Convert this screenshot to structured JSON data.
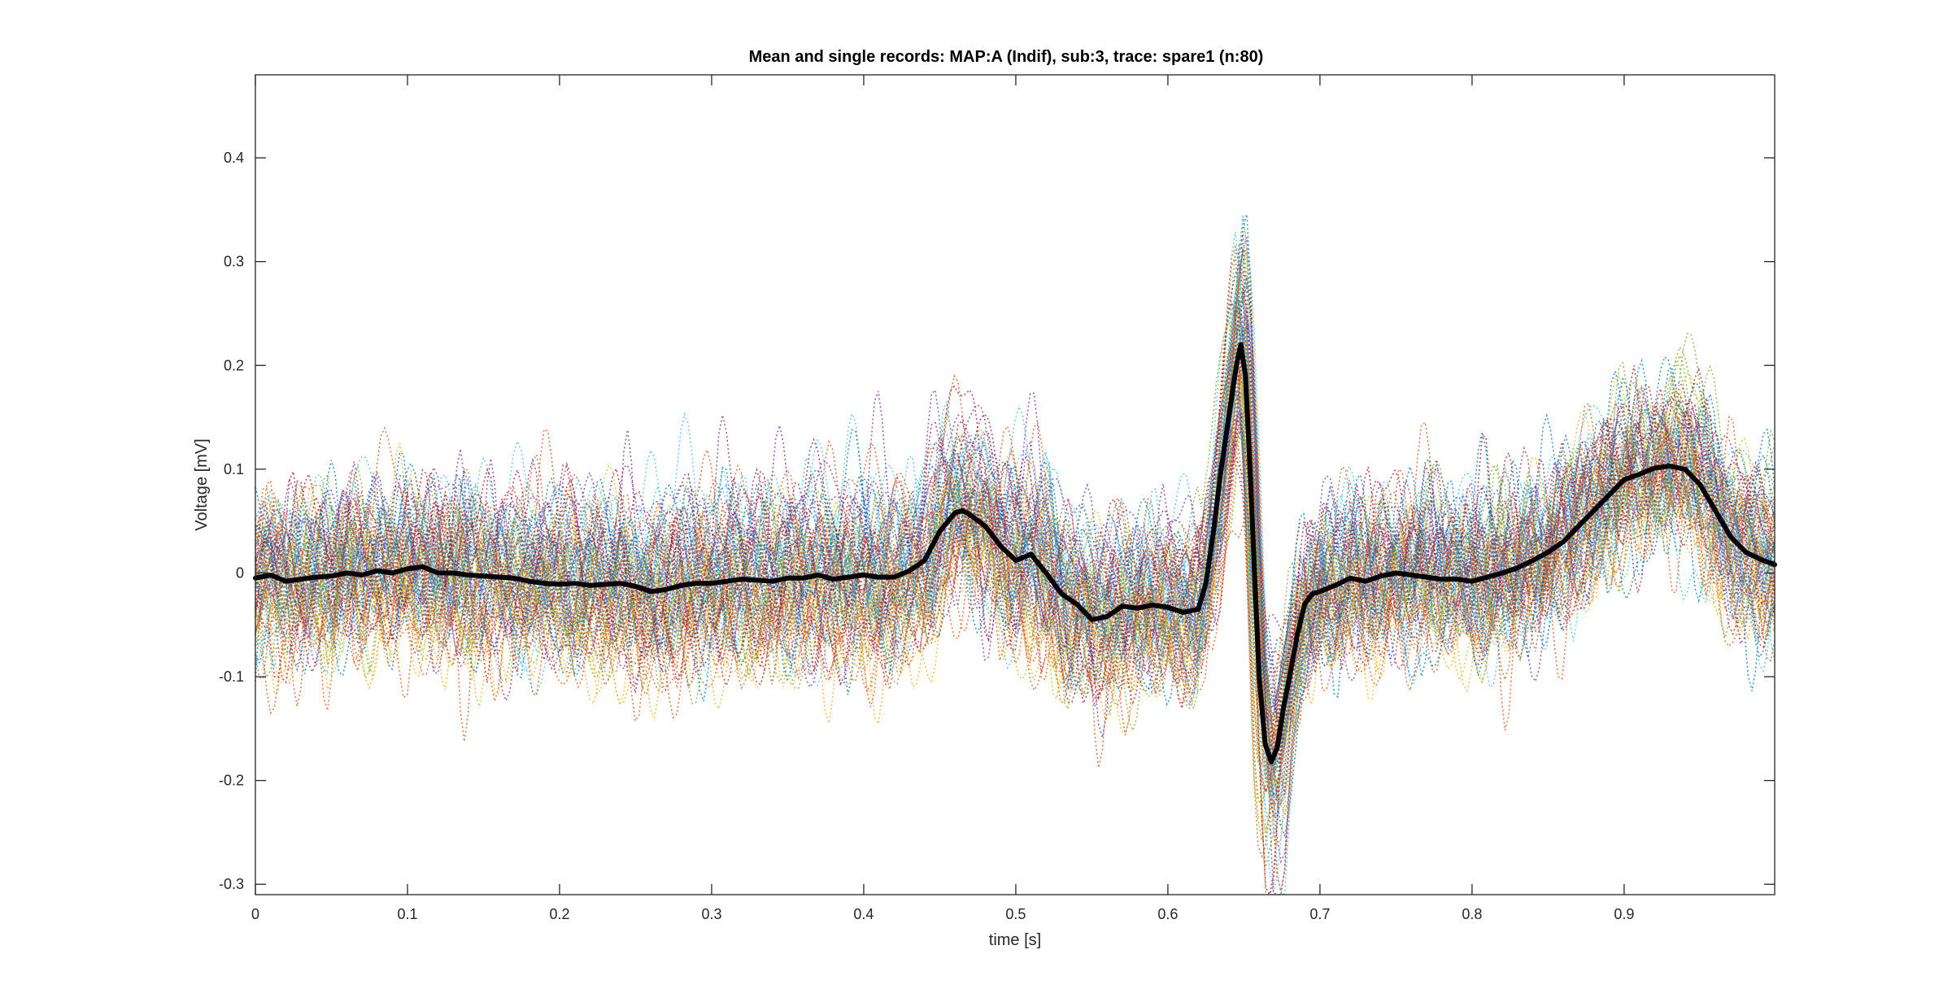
{
  "chart_data": {
    "type": "line",
    "title": "Mean and single records: MAP:A (Indif), sub:3, trace: spare1 (n:80)",
    "xlabel": "time [s]",
    "ylabel": "Voltage [mV]",
    "xlim": [
      0,
      0.999
    ],
    "ylim": [
      -0.31,
      0.48
    ],
    "x_ticks": [
      0,
      0.1,
      0.2,
      0.3,
      0.4,
      0.5,
      0.6,
      0.7,
      0.8,
      0.9
    ],
    "x_tick_labels": [
      "0",
      "0.1",
      "0.2",
      "0.3",
      "0.4",
      "0.5",
      "0.6",
      "0.7",
      "0.8",
      "0.9"
    ],
    "y_ticks": [
      -0.3,
      -0.2,
      -0.1,
      0,
      0.1,
      0.2,
      0.3,
      0.4
    ],
    "y_tick_labels": [
      "-0.3",
      "-0.2",
      "-0.1",
      "0",
      "0.1",
      "0.2",
      "0.3",
      "0.4"
    ],
    "grid": false,
    "legend": "none",
    "single_records": {
      "count": 80,
      "style": "dotted",
      "colors": [
        "#0072BD",
        "#D95319",
        "#EDB120",
        "#7E2F8E",
        "#77AC30",
        "#4DBEEE",
        "#A2142F"
      ]
    },
    "series": [
      {
        "color": "#000000",
        "x": [
          0,
          0.01,
          0.02,
          0.03,
          0.04,
          0.05,
          0.06,
          0.07,
          0.08,
          0.09,
          0.1,
          0.11,
          0.12,
          0.13,
          0.14,
          0.15,
          0.16,
          0.17,
          0.18,
          0.19,
          0.2,
          0.21,
          0.22,
          0.23,
          0.24,
          0.25,
          0.26,
          0.27,
          0.28,
          0.29,
          0.3,
          0.31,
          0.32,
          0.33,
          0.34,
          0.35,
          0.36,
          0.37,
          0.38,
          0.39,
          0.4,
          0.41,
          0.42,
          0.43,
          0.44,
          0.45,
          0.46,
          0.465,
          0.47,
          0.48,
          0.49,
          0.5,
          0.51,
          0.52,
          0.53,
          0.54,
          0.55,
          0.56,
          0.57,
          0.58,
          0.59,
          0.6,
          0.61,
          0.62,
          0.625,
          0.63,
          0.635,
          0.64,
          0.645,
          0.648,
          0.651,
          0.654,
          0.657,
          0.66,
          0.664,
          0.668,
          0.672,
          0.676,
          0.68,
          0.685,
          0.69,
          0.695,
          0.7,
          0.71,
          0.72,
          0.73,
          0.74,
          0.75,
          0.76,
          0.77,
          0.78,
          0.79,
          0.8,
          0.81,
          0.82,
          0.83,
          0.84,
          0.85,
          0.86,
          0.87,
          0.88,
          0.89,
          0.9,
          0.91,
          0.92,
          0.93,
          0.94,
          0.95,
          0.96,
          0.97,
          0.98,
          0.99,
          0.999
        ],
        "values": [
          -0.005,
          -0.002,
          -0.008,
          -0.006,
          -0.004,
          -0.003,
          0.0,
          -0.002,
          0.002,
          0.0,
          0.004,
          0.006,
          0.0,
          0.0,
          -0.002,
          -0.003,
          -0.004,
          -0.005,
          -0.008,
          -0.01,
          -0.011,
          -0.01,
          -0.012,
          -0.011,
          -0.01,
          -0.013,
          -0.018,
          -0.016,
          -0.012,
          -0.01,
          -0.01,
          -0.008,
          -0.006,
          -0.007,
          -0.008,
          -0.005,
          -0.005,
          -0.002,
          -0.006,
          -0.004,
          -0.002,
          -0.004,
          -0.004,
          0.002,
          0.012,
          0.04,
          0.058,
          0.06,
          0.056,
          0.045,
          0.026,
          0.012,
          0.018,
          0.0,
          -0.02,
          -0.03,
          -0.045,
          -0.042,
          -0.032,
          -0.034,
          -0.031,
          -0.033,
          -0.038,
          -0.035,
          -0.01,
          0.04,
          0.1,
          0.15,
          0.2,
          0.22,
          0.19,
          0.1,
          0.0,
          -0.1,
          -0.165,
          -0.182,
          -0.168,
          -0.13,
          -0.1,
          -0.06,
          -0.03,
          -0.02,
          -0.018,
          -0.012,
          -0.005,
          -0.008,
          -0.003,
          0.0,
          -0.002,
          -0.004,
          -0.006,
          -0.006,
          -0.008,
          -0.004,
          0.0,
          0.005,
          0.012,
          0.02,
          0.03,
          0.045,
          0.06,
          0.075,
          0.09,
          0.095,
          0.101,
          0.103,
          0.1,
          0.085,
          0.06,
          0.035,
          0.02,
          0.013,
          0.008
        ]
      }
    ]
  }
}
